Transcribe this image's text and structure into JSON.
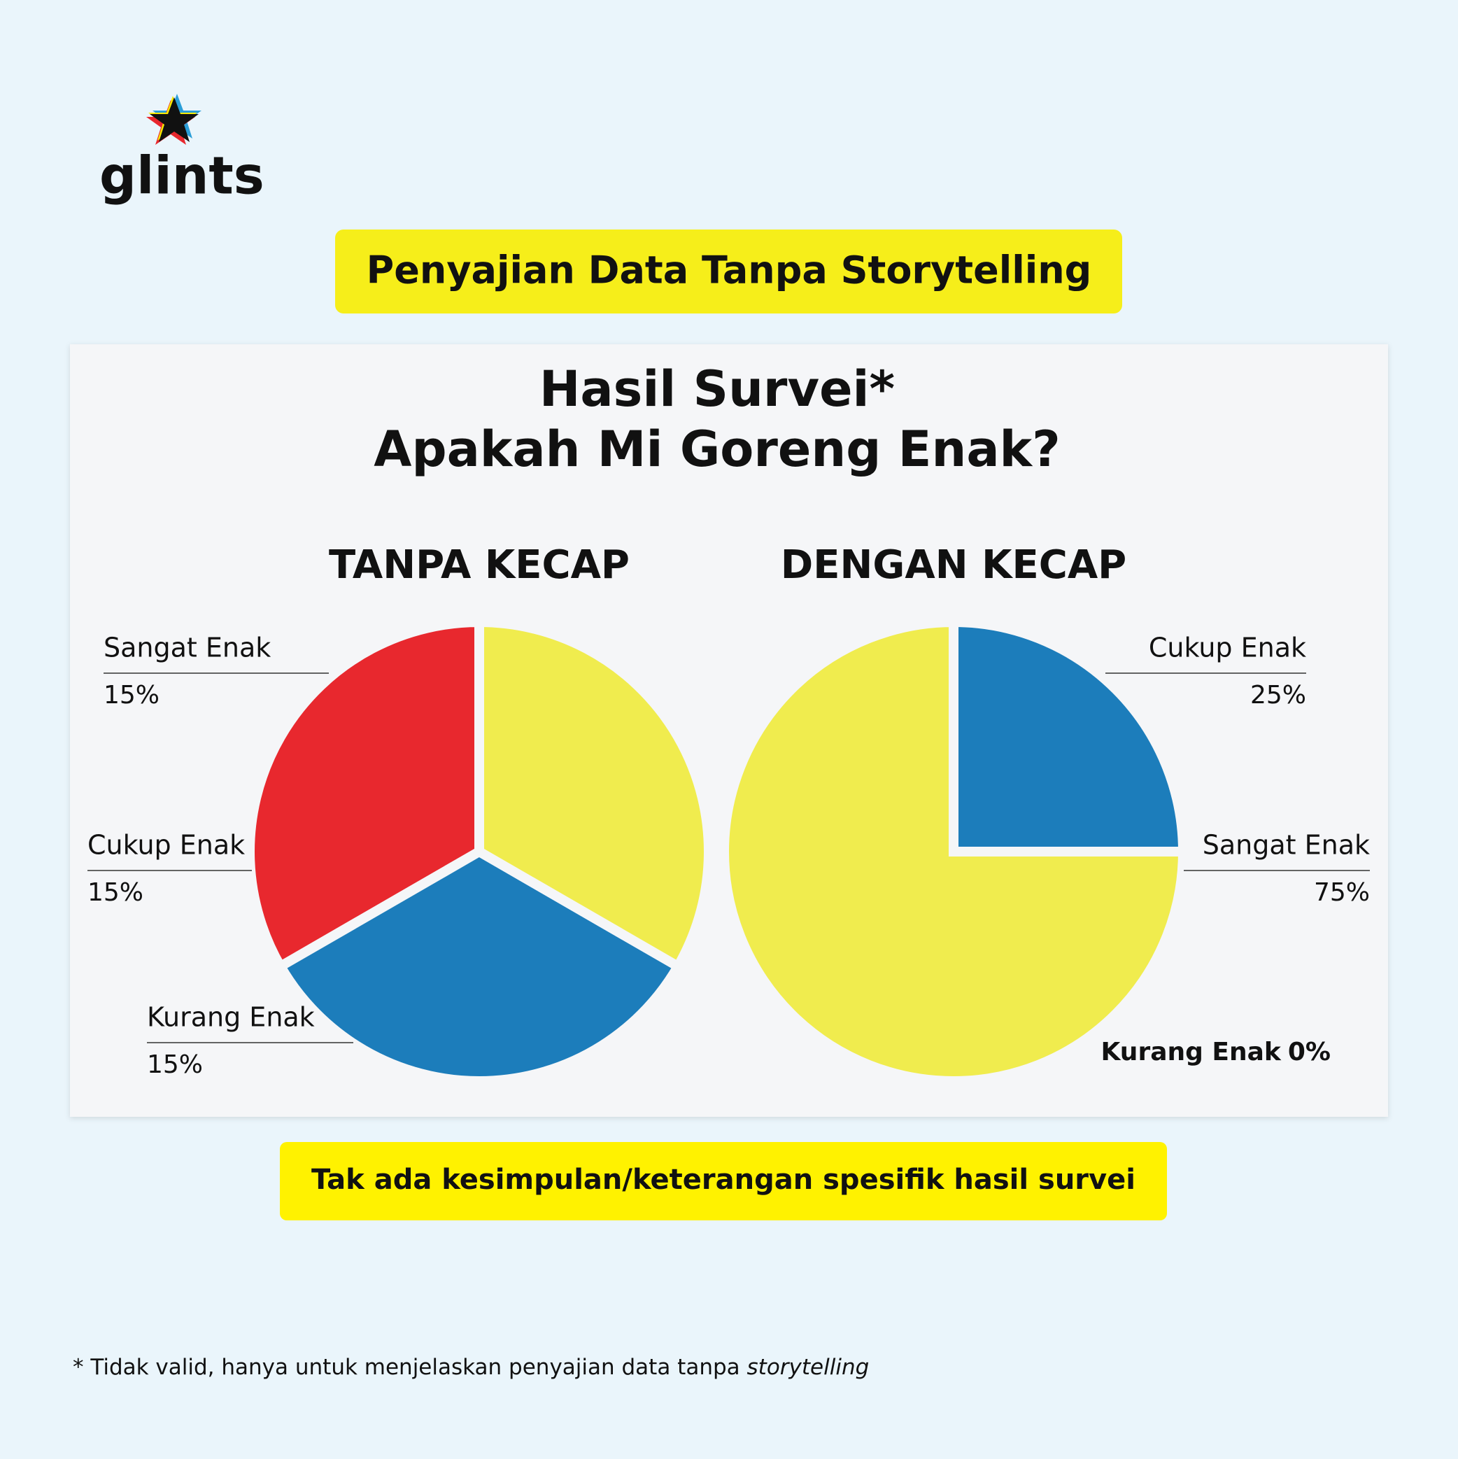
{
  "logo": "glints",
  "banner": "Penyajian Data Tanpa Storytelling",
  "panel_title": [
    "Hasil Survei*",
    "Apakah Mi Goreng Enak?"
  ],
  "chart_data": [
    {
      "type": "pie",
      "title": "TANPA KECAP",
      "direction": "counterclockwise",
      "categories": [
        "Sangat Enak",
        "Cukup Enak",
        "Kurang Enak"
      ],
      "values": [
        15,
        15,
        15
      ],
      "value_labels": [
        "15%",
        "15%",
        "15%"
      ],
      "colors": [
        "#e8282e",
        "#1c7dbb",
        "#f0ec4e"
      ]
    },
    {
      "type": "pie",
      "title": "DENGAN KECAP",
      "direction": "clockwise",
      "categories": [
        "Cukup Enak",
        "Sangat Enak",
        "Kurang Enak"
      ],
      "values": [
        25,
        75,
        0
      ],
      "value_labels": [
        "25%",
        "75%",
        "0%"
      ],
      "colors": [
        "#1c7dbb",
        "#f0ec4e",
        "#9e9e9e"
      ]
    }
  ],
  "conclusion": "Tak ada kesimpulan/keterangan spesifik hasil survei",
  "footnote": {
    "text": "* Tidak valid, hanya untuk menjelaskan penyajian data tanpa ",
    "emphasis": "storytelling"
  }
}
